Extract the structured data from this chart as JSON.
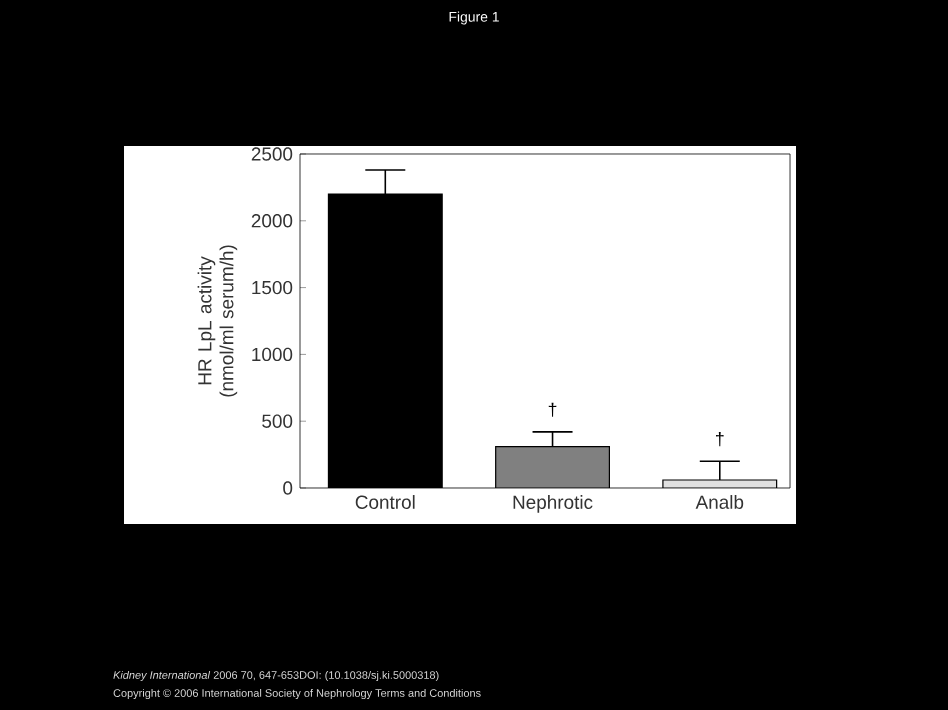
{
  "chart_data": {
    "type": "bar",
    "title": "Figure 1",
    "ylabel": "HR LpL activity (nmol/ml serum/h)",
    "categories": [
      "Control",
      "Nephrotic",
      "Analb"
    ],
    "values": [
      2200,
      310,
      60
    ],
    "errors": [
      180,
      110,
      140
    ],
    "colors": [
      "#000000",
      "#808080",
      "#e0e0e0"
    ],
    "ylim": [
      0,
      2500
    ],
    "yticks": [
      0,
      500,
      1000,
      1500,
      2000,
      2500
    ],
    "grid": false,
    "annotations": [
      {
        "text": "†",
        "x": "Nephrotic",
        "y": 420
      },
      {
        "text": "†",
        "x": "Analb",
        "y": 200
      },
      "*Kidney International* 2006 70, 647-653DOI: (10.1038/sj.ki.5000318)",
      "Copyright © 2006 International Society of Nephrology Terms and Conditions"
    ]
  }
}
